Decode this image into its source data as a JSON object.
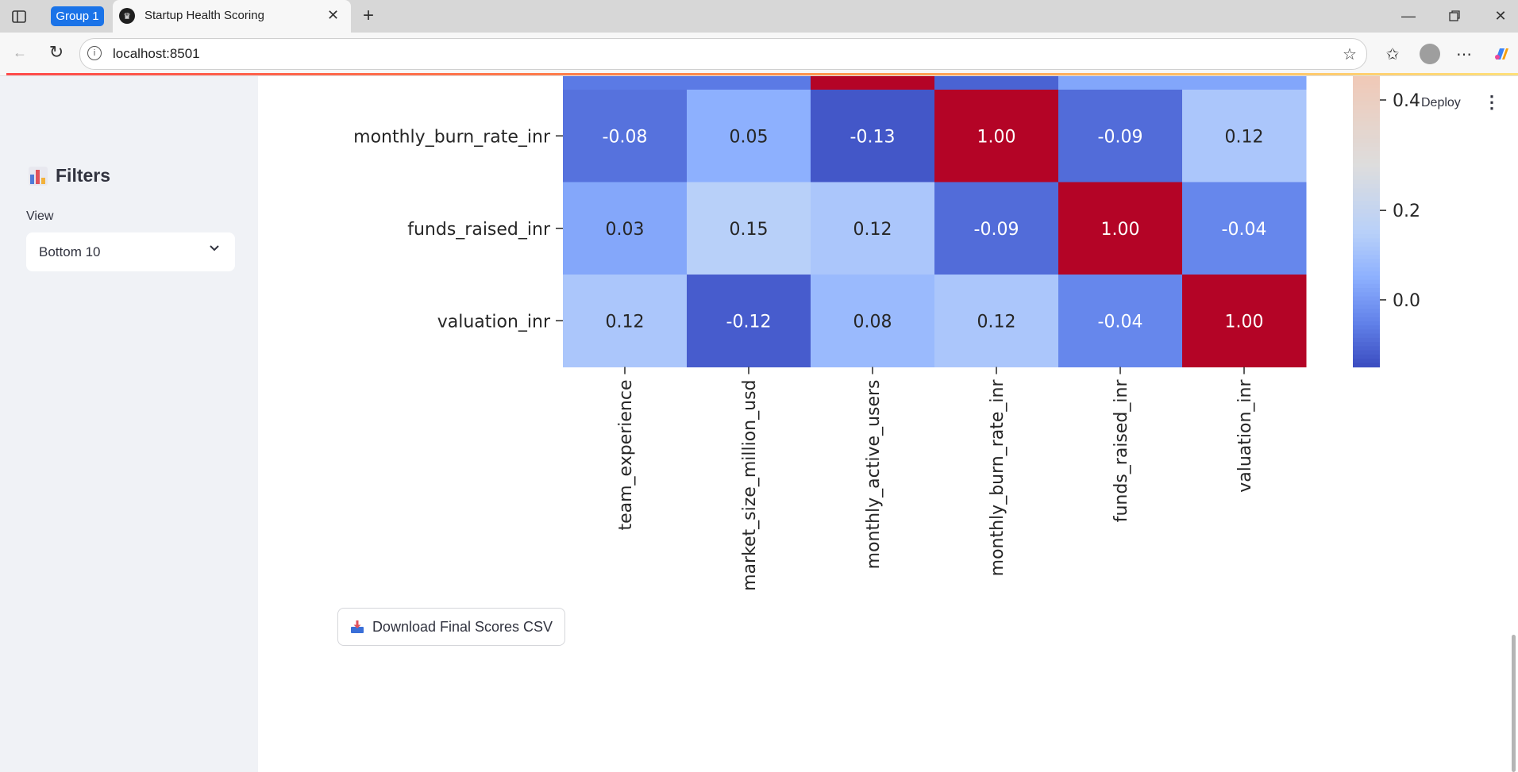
{
  "browser": {
    "group_label": "Group 1",
    "tab_title": "Startup Health Scoring",
    "url": "localhost:8501"
  },
  "sidebar": {
    "title": "Filters",
    "title_icon": "bar-chart-icon",
    "view_label": "View",
    "view_value": "Bottom 10"
  },
  "header": {
    "deploy_label": "Deploy"
  },
  "chart_data": {
    "type": "heatmap",
    "title": "",
    "rows": [
      "monthly_burn_rate_inr",
      "funds_raised_inr",
      "valuation_inr"
    ],
    "columns": [
      "team_experience",
      "market_size_million_usd",
      "monthly_active_users",
      "monthly_burn_rate_inr",
      "funds_raised_inr",
      "valuation_inr"
    ],
    "values": [
      [
        -0.08,
        0.05,
        -0.13,
        1.0,
        -0.09,
        0.12
      ],
      [
        0.03,
        0.15,
        0.12,
        -0.09,
        1.0,
        -0.04
      ],
      [
        0.12,
        -0.12,
        0.08,
        0.12,
        -0.04,
        1.0
      ]
    ],
    "value_labels": [
      [
        "-0.08",
        "0.05",
        "-0.13",
        "1.00",
        "-0.09",
        "0.12"
      ],
      [
        "0.03",
        "0.15",
        "0.12",
        "-0.09",
        "1.00",
        "-0.04"
      ],
      [
        "0.12",
        "-0.12",
        "0.08",
        "0.12",
        "-0.04",
        "1.00"
      ]
    ],
    "partial_top_row_colors": [
      "#5b7ae5",
      "#5b7ae5",
      "#b40426",
      "#4a63d3",
      "#82a6fb",
      "#82a6fb"
    ],
    "colormap": "coolwarm",
    "colorbar_ticks": [
      "0.4",
      "0.2",
      "0.0"
    ],
    "colorbar_tick_values": [
      0.4,
      0.2,
      0.0
    ],
    "colorbar_range": [
      -0.15,
      0.5
    ]
  },
  "actions": {
    "download_label": "Download Final Scores CSV"
  }
}
